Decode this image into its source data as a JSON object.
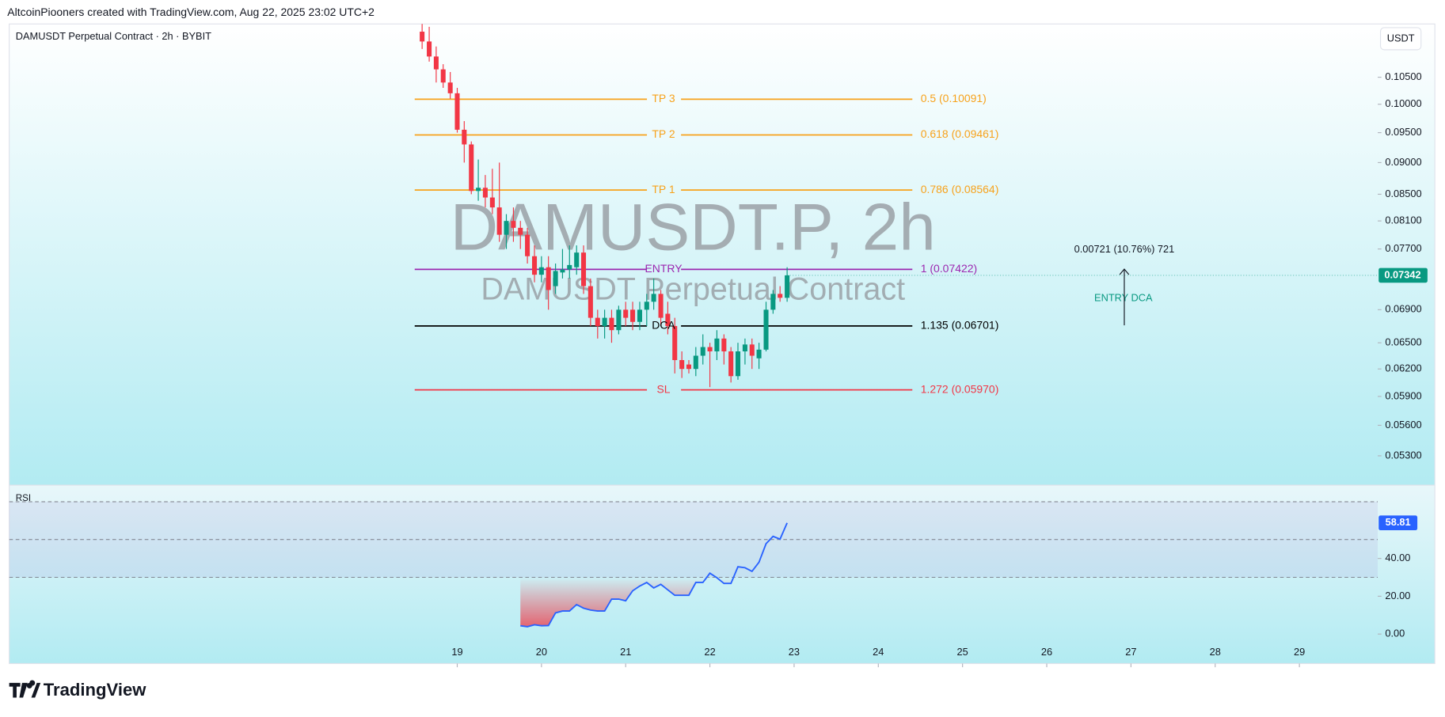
{
  "header": {
    "attribution": "AltcoinPiooners created with TradingView.com, Aug 22, 2025 23:02 UTC+2",
    "currency_button": "USDT",
    "logo": "TradingView"
  },
  "chart_data": [
    {
      "type": "candlestick",
      "title": "DAMUSDT Perpetual Contract · 2h · BYBIT",
      "watermark": "DAMUSDT.P, 2h",
      "watermark_subtitle": "DAMUSDT Perpetual Contract",
      "x": [
        18.583,
        18.667,
        18.75,
        18.833,
        18.917,
        19,
        19.083,
        19.167,
        19.25,
        19.333,
        19.417,
        19.5,
        19.583,
        19.667,
        19.75,
        19.833,
        19.917,
        20,
        20.083,
        20.167,
        20.25,
        20.333,
        20.417,
        20.5,
        20.583,
        20.667,
        20.75,
        20.833,
        20.917,
        21,
        21.083,
        21.167,
        21.25,
        21.333,
        21.417,
        21.5,
        21.583,
        21.667,
        21.75,
        21.833,
        21.917,
        22,
        22.083,
        22.167,
        22.25,
        22.333,
        22.417,
        22.5,
        22.583,
        22.667,
        22.75,
        22.833,
        22.917
      ],
      "open": [
        0.114,
        0.112,
        0.109,
        0.1065,
        0.104,
        0.102,
        0.0955,
        0.093,
        0.0855,
        0.086,
        0.0845,
        0.083,
        0.079,
        0.081,
        0.08,
        0.079,
        0.076,
        0.0735,
        0.0745,
        0.072,
        0.0738,
        0.0742,
        0.0745,
        0.0765,
        0.072,
        0.068,
        0.067,
        0.068,
        0.0665,
        0.069,
        0.069,
        0.0675,
        0.069,
        0.07,
        0.071,
        0.0685,
        0.067,
        0.063,
        0.0625,
        0.062,
        0.0635,
        0.0645,
        0.064,
        0.0655,
        0.064,
        0.0612,
        0.064,
        0.0648,
        0.0632,
        0.0642,
        0.069,
        0.071,
        0.0705
      ],
      "high": [
        0.116,
        0.115,
        0.111,
        0.1075,
        0.106,
        0.103,
        0.097,
        0.0935,
        0.0905,
        0.088,
        0.089,
        0.09,
        0.082,
        0.083,
        0.081,
        0.08,
        0.0775,
        0.076,
        0.076,
        0.075,
        0.077,
        0.0775,
        0.0775,
        0.0775,
        0.073,
        0.069,
        0.069,
        0.069,
        0.0695,
        0.07,
        0.07,
        0.07,
        0.071,
        0.073,
        0.0715,
        0.07,
        0.068,
        0.064,
        0.063,
        0.0645,
        0.066,
        0.065,
        0.0665,
        0.066,
        0.0645,
        0.065,
        0.0655,
        0.0655,
        0.065,
        0.07,
        0.0715,
        0.072,
        0.0745
      ],
      "low": [
        0.1105,
        0.108,
        0.104,
        0.103,
        0.101,
        0.095,
        0.09,
        0.085,
        0.084,
        0.083,
        0.082,
        0.078,
        0.077,
        0.078,
        0.077,
        0.075,
        0.0725,
        0.0725,
        0.069,
        0.071,
        0.073,
        0.073,
        0.0735,
        0.071,
        0.067,
        0.0655,
        0.0655,
        0.065,
        0.066,
        0.067,
        0.0665,
        0.0665,
        0.067,
        0.069,
        0.067,
        0.066,
        0.0615,
        0.061,
        0.0615,
        0.0612,
        0.0625,
        0.06,
        0.063,
        0.0625,
        0.0605,
        0.0608,
        0.0625,
        0.062,
        0.062,
        0.064,
        0.0685,
        0.07,
        0.07
      ],
      "close": [
        0.112,
        0.109,
        0.1065,
        0.104,
        0.102,
        0.0955,
        0.093,
        0.0855,
        0.086,
        0.0845,
        0.083,
        0.079,
        0.081,
        0.08,
        0.079,
        0.076,
        0.0735,
        0.0745,
        0.0715,
        0.074,
        0.0742,
        0.0748,
        0.0765,
        0.072,
        0.068,
        0.067,
        0.068,
        0.0665,
        0.069,
        0.068,
        0.0675,
        0.069,
        0.07,
        0.071,
        0.068,
        0.067,
        0.063,
        0.062,
        0.062,
        0.0635,
        0.0645,
        0.064,
        0.0655,
        0.064,
        0.0612,
        0.064,
        0.0648,
        0.0635,
        0.0642,
        0.069,
        0.071,
        0.0705,
        0.07342
      ],
      "up_color": "#089981",
      "down_color": "#f23645",
      "log_scale": true,
      "ylim": [
        0.0503,
        0.1156
      ],
      "yticks": [
        {
          "value": 0.105,
          "label": "0.10500"
        },
        {
          "value": 0.1,
          "label": "0.10000"
        },
        {
          "value": 0.095,
          "label": "0.09500"
        },
        {
          "value": 0.09,
          "label": "0.09000"
        },
        {
          "value": 0.085,
          "label": "0.08500"
        },
        {
          "value": 0.081,
          "label": "0.08100"
        },
        {
          "value": 0.077,
          "label": "0.07700"
        },
        {
          "value": 0.069,
          "label": "0.06900"
        },
        {
          "value": 0.065,
          "label": "0.06500"
        },
        {
          "value": 0.062,
          "label": "0.06200"
        },
        {
          "value": 0.059,
          "label": "0.05900"
        },
        {
          "value": 0.056,
          "label": "0.05600"
        },
        {
          "value": 0.053,
          "label": "0.05300"
        }
      ],
      "xlim": [
        13.68,
        29.93
      ],
      "xticks": [
        19,
        20,
        21,
        22,
        23,
        24,
        25,
        26,
        27,
        28,
        29
      ],
      "levels": [
        {
          "label": "TP 3",
          "text": "0.5 (0.10091)",
          "value": 0.10091,
          "color": "#f7a21b"
        },
        {
          "label": "TP 2",
          "text": "0.618 (0.09461)",
          "value": 0.09461,
          "color": "#f7a21b"
        },
        {
          "label": "TP 1",
          "text": "0.786 (0.08564)",
          "value": 0.08564,
          "color": "#f7a21b"
        },
        {
          "label": "ENTRY",
          "text": "1 (0.07422)",
          "value": 0.07422,
          "color": "#9c27b0"
        },
        {
          "label": "DCA",
          "text": "1.135 (0.06701)",
          "value": 0.06701,
          "color": "#000000"
        },
        {
          "label": "SL",
          "text": "1.272 (0.05970)",
          "value": 0.0597,
          "color": "#f23645"
        }
      ],
      "measure": {
        "text": "0.00721 (10.76%) 721",
        "label": "ENTRY DCA",
        "color": "#089981"
      }
    },
    {
      "type": "line",
      "title": "RSI",
      "x": [
        18.583,
        18.667,
        18.75,
        18.833,
        18.917,
        19,
        19.083,
        19.167,
        19.25,
        19.333,
        19.417,
        19.5,
        19.583,
        19.667,
        19.75,
        19.833,
        19.917,
        20,
        20.083,
        20.167,
        20.25,
        20.333,
        20.417,
        20.5,
        20.583,
        20.667,
        20.75,
        20.833,
        20.917,
        21,
        21.083,
        21.167,
        21.25,
        21.333,
        21.417,
        21.5,
        21.583,
        21.667,
        21.75,
        21.833,
        21.917,
        22,
        22.083,
        22.167,
        22.25,
        22.333,
        22.417,
        22.5,
        22.583,
        22.667,
        22.75,
        22.833,
        22.917
      ],
      "values": [
        null,
        null,
        null,
        null,
        null,
        null,
        null,
        null,
        null,
        null,
        null,
        null,
        null,
        null,
        4.4,
        3.9,
        4.9,
        4.4,
        4.5,
        11.2,
        12.2,
        12.2,
        15.6,
        13.7,
        12.7,
        12.2,
        12.2,
        18.5,
        18.5,
        17.6,
        22.9,
        25.4,
        27.3,
        24.4,
        26.3,
        23.4,
        20.5,
        20.5,
        20.5,
        27.3,
        27.3,
        32.2,
        29.8,
        26.8,
        26.8,
        35.6,
        35.1,
        33.2,
        38.0,
        47.8,
        51.7,
        50.2,
        58.81
      ],
      "color": "#2962ff",
      "xlim": [
        13.68,
        29.93
      ],
      "ylim": [
        -15.6,
        78.5
      ],
      "yticks": [
        {
          "value": 40,
          "label": "40.00"
        },
        {
          "value": 20,
          "label": "20.00"
        },
        {
          "value": 0,
          "label": "0.00"
        }
      ],
      "levels": [
        70,
        50,
        30
      ]
    }
  ]
}
